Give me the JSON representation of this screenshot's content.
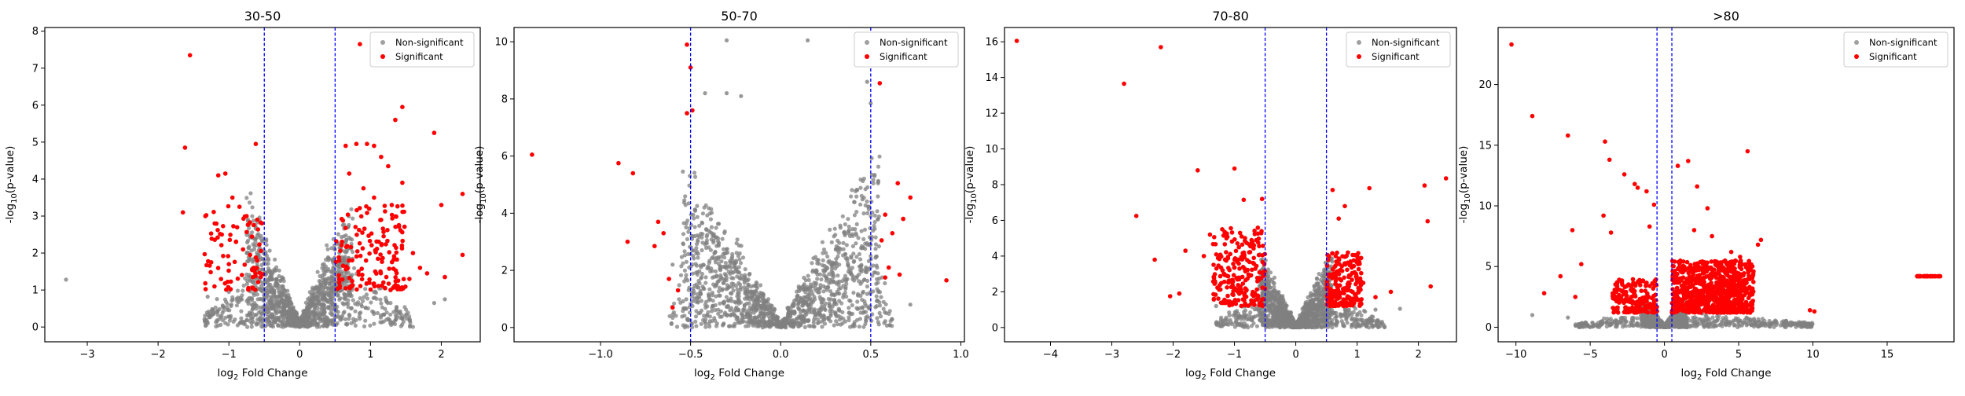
{
  "chart_data": [
    {
      "type": "scatter",
      "title": "30-50",
      "xlabel": "log2 Fold Change",
      "ylabel": "-log10(p-value)",
      "xlim": [
        -3.6,
        2.55
      ],
      "ylim": [
        -0.4,
        8.1
      ],
      "xticks": [
        -3,
        -2,
        -1,
        0,
        1,
        2
      ],
      "yticks": [
        0,
        1,
        2,
        3,
        4,
        5,
        6,
        7,
        8
      ],
      "thresholds": [
        -0.5,
        0.5
      ],
      "legend": {
        "position": "top-right",
        "entries": [
          "Non-significant",
          "Significant"
        ]
      },
      "series": [
        {
          "name": "Non-significant",
          "color": "#808080",
          "envelope_peak": 3.8,
          "envelope_x": [
            -0.75,
            0.75
          ],
          "outer_x": [
            -1.35,
            1.6
          ],
          "extra": [
            [
              -3.3,
              1.28
            ],
            [
              -1.3,
              0.82
            ],
            [
              -1.0,
              0.95
            ],
            [
              1.9,
              0.65
            ],
            [
              2.05,
              0.75
            ]
          ]
        },
        {
          "name": "Significant",
          "color": "#ff0000",
          "points": [
            [
              -1.55,
              7.35
            ],
            [
              -1.62,
              4.85
            ],
            [
              -1.65,
              3.1
            ],
            [
              -0.62,
              4.95
            ],
            [
              -1.15,
              4.1
            ],
            [
              -1.05,
              4.15
            ],
            [
              -0.95,
              3.5
            ],
            [
              -0.85,
              3.25
            ],
            [
              -0.75,
              3.0
            ],
            [
              -1.2,
              2.8
            ],
            [
              -1.1,
              2.5
            ],
            [
              -0.9,
              2.3
            ],
            [
              -0.8,
              2.1
            ],
            [
              -0.7,
              1.95
            ],
            [
              -0.6,
              1.8
            ],
            [
              -1.0,
              1.7
            ],
            [
              -0.65,
              1.6
            ],
            [
              -1.25,
              1.75
            ],
            [
              -0.55,
              1.35
            ],
            [
              0.85,
              7.65
            ],
            [
              1.45,
              5.95
            ],
            [
              1.35,
              5.6
            ],
            [
              1.9,
              5.25
            ],
            [
              0.65,
              4.9
            ],
            [
              0.8,
              4.95
            ],
            [
              0.95,
              4.95
            ],
            [
              1.05,
              4.9
            ],
            [
              1.15,
              4.6
            ],
            [
              1.25,
              4.35
            ],
            [
              0.7,
              4.15
            ],
            [
              0.9,
              3.75
            ],
            [
              1.05,
              3.5
            ],
            [
              1.45,
              3.9
            ],
            [
              1.3,
              3.3
            ],
            [
              2.0,
              3.3
            ],
            [
              2.3,
              3.6
            ],
            [
              2.3,
              1.95
            ],
            [
              2.05,
              1.35
            ],
            [
              1.6,
              2.0
            ],
            [
              1.7,
              1.6
            ],
            [
              1.55,
              1.3
            ],
            [
              1.8,
              1.45
            ]
          ],
          "bands": [
            [
              0.5,
              1.5,
              1.0,
              3.3,
              150
            ],
            [
              -1.35,
              -0.5,
              1.0,
              3.3,
              70
            ]
          ]
        }
      ]
    },
    {
      "type": "scatter",
      "title": "50-70",
      "xlabel": "log2 Fold Change",
      "ylabel": "-log10(p-value)",
      "xlim": [
        -1.48,
        1.02
      ],
      "ylim": [
        -0.5,
        10.5
      ],
      "xticks": [
        -1.0,
        -0.5,
        0.0,
        0.5,
        1.0
      ],
      "yticks": [
        0,
        2,
        4,
        6,
        8,
        10
      ],
      "thresholds": [
        -0.5,
        0.5
      ],
      "legend": {
        "position": "top-right",
        "entries": [
          "Non-significant",
          "Significant"
        ]
      },
      "series": [
        {
          "name": "Non-significant",
          "color": "#808080",
          "envelope_peak": 6.5,
          "envelope_x": [
            -0.55,
            0.55
          ],
          "outer_x": [
            -0.62,
            0.62
          ],
          "extra": [
            [
              -0.3,
              10.05
            ],
            [
              0.15,
              10.05
            ],
            [
              -0.3,
              8.2
            ],
            [
              -0.42,
              8.2
            ],
            [
              -0.22,
              8.1
            ],
            [
              0.48,
              8.6
            ],
            [
              0.5,
              7.85
            ],
            [
              -0.6,
              2.2
            ],
            [
              0.72,
              0.8
            ]
          ]
        },
        {
          "name": "Significant",
          "color": "#ff0000",
          "points": [
            [
              -1.38,
              6.05
            ],
            [
              -0.52,
              9.9
            ],
            [
              -0.5,
              9.1
            ],
            [
              -0.49,
              7.6
            ],
            [
              -0.52,
              7.5
            ],
            [
              -0.9,
              5.75
            ],
            [
              -0.82,
              5.4
            ],
            [
              -0.85,
              3.0
            ],
            [
              -0.68,
              3.7
            ],
            [
              -0.65,
              3.3
            ],
            [
              -0.7,
              2.85
            ],
            [
              -0.62,
              1.7
            ],
            [
              -0.57,
              1.3
            ],
            [
              -0.6,
              0.7
            ],
            [
              0.55,
              8.55
            ],
            [
              0.65,
              5.05
            ],
            [
              0.72,
              4.55
            ],
            [
              0.68,
              3.8
            ],
            [
              0.58,
              3.95
            ],
            [
              0.62,
              3.3
            ],
            [
              0.56,
              3.05
            ],
            [
              0.6,
              2.1
            ],
            [
              0.66,
              1.85
            ],
            [
              0.58,
              1.75
            ],
            [
              0.92,
              1.65
            ]
          ],
          "bands": []
        }
      ]
    },
    {
      "type": "scatter",
      "title": "70-80",
      "xlabel": "log2 Fold Change",
      "ylabel": "-log10(p-value)",
      "xlim": [
        -4.75,
        2.62
      ],
      "ylim": [
        -0.8,
        16.8
      ],
      "xticks": [
        -4,
        -3,
        -2,
        -1,
        0,
        1,
        2
      ],
      "yticks": [
        0,
        2,
        4,
        6,
        8,
        10,
        12,
        14,
        16
      ],
      "thresholds": [
        -0.5,
        0.5
      ],
      "legend": {
        "position": "top-right",
        "entries": [
          "Non-significant",
          "Significant"
        ]
      },
      "series": [
        {
          "name": "Non-significant",
          "color": "#808080",
          "envelope_peak": 4.5,
          "envelope_x": [
            -0.6,
            0.6
          ],
          "outer_x": [
            -1.3,
            1.45
          ],
          "extra": [
            [
              -1.3,
              1.2
            ],
            [
              1.3,
              1.0
            ],
            [
              1.7,
              1.05
            ]
          ]
        },
        {
          "name": "Significant",
          "color": "#ff0000",
          "points": [
            [
              -4.55,
              16.05
            ],
            [
              -2.2,
              15.7
            ],
            [
              -2.8,
              13.65
            ],
            [
              -2.6,
              6.25
            ],
            [
              -2.3,
              3.8
            ],
            [
              -2.05,
              1.75
            ],
            [
              -1.6,
              8.8
            ],
            [
              -1.0,
              8.9
            ],
            [
              -0.85,
              7.15
            ],
            [
              -0.55,
              7.2
            ],
            [
              -1.4,
              5.2
            ],
            [
              -1.2,
              5.5
            ],
            [
              -1.8,
              4.3
            ],
            [
              -1.5,
              4.0
            ],
            [
              -1.9,
              1.9
            ],
            [
              0.6,
              7.7
            ],
            [
              0.8,
              6.8
            ],
            [
              0.7,
              6.1
            ],
            [
              1.2,
              7.8
            ],
            [
              2.45,
              8.35
            ],
            [
              2.1,
              7.95
            ],
            [
              2.15,
              5.95
            ],
            [
              2.2,
              2.3
            ],
            [
              1.55,
              2.0
            ],
            [
              1.1,
              2.5
            ],
            [
              1.0,
              2.7
            ],
            [
              0.85,
              4.2
            ],
            [
              1.3,
              1.7
            ]
          ],
          "bands": [
            [
              -1.35,
              -0.5,
              1.2,
              5.6,
              220
            ],
            [
              0.5,
              1.1,
              1.2,
              4.2,
              200
            ]
          ]
        }
      ]
    },
    {
      "type": "scatter",
      "title": ">80",
      "xlabel": "log2 Fold Change",
      "ylabel": "-log10(p-value)",
      "xlim": [
        -11.2,
        19.5
      ],
      "ylim": [
        -1.2,
        24.7
      ],
      "xticks": [
        -10,
        -5,
        0,
        5,
        10,
        15
      ],
      "yticks": [
        0,
        5,
        10,
        15,
        20
      ],
      "thresholds": [
        -0.5,
        0.5
      ],
      "legend": {
        "position": "top-right",
        "entries": [
          "Non-significant",
          "Significant"
        ]
      },
      "series": [
        {
          "name": "Non-significant",
          "color": "#808080",
          "envelope_peak": 2.5,
          "envelope_x": [
            -1.5,
            1.5
          ],
          "outer_x": [
            -6.0,
            10.0
          ],
          "extra": [
            [
              -8.9,
              1.0
            ],
            [
              -6.5,
              0.8
            ]
          ]
        },
        {
          "name": "Significant",
          "color": "#ff0000",
          "points": [
            [
              -10.3,
              23.3
            ],
            [
              -8.9,
              17.4
            ],
            [
              -6.5,
              15.8
            ],
            [
              -6.2,
              8.0
            ],
            [
              -4.0,
              15.3
            ],
            [
              -3.7,
              13.8
            ],
            [
              -5.6,
              5.2
            ],
            [
              -4.1,
              9.2
            ],
            [
              -3.6,
              7.8
            ],
            [
              -2.7,
              12.6
            ],
            [
              -2.0,
              11.8
            ],
            [
              -1.8,
              11.5
            ],
            [
              -1.2,
              11.2
            ],
            [
              -1.0,
              8.3
            ],
            [
              -0.7,
              10.1
            ],
            [
              -7.0,
              4.2
            ],
            [
              -6.0,
              2.5
            ],
            [
              -8.1,
              2.8
            ],
            [
              0.9,
              13.3
            ],
            [
              1.6,
              13.7
            ],
            [
              2.2,
              11.6
            ],
            [
              2.9,
              9.8
            ],
            [
              5.6,
              14.5
            ],
            [
              6.5,
              7.2
            ],
            [
              6.3,
              6.8
            ],
            [
              4.5,
              6.2
            ],
            [
              5.1,
              5.8
            ],
            [
              3.2,
              7.5
            ],
            [
              2.0,
              8.0
            ],
            [
              9.8,
              1.4
            ],
            [
              10.1,
              1.3
            ]
          ],
          "bands": [
            [
              0.5,
              6.0,
              1.2,
              5.5,
              900
            ],
            [
              -3.5,
              -0.5,
              1.2,
              4.0,
              200
            ],
            [
              17.0,
              18.6,
              4.2,
              4.2,
              40
            ]
          ]
        }
      ]
    }
  ]
}
